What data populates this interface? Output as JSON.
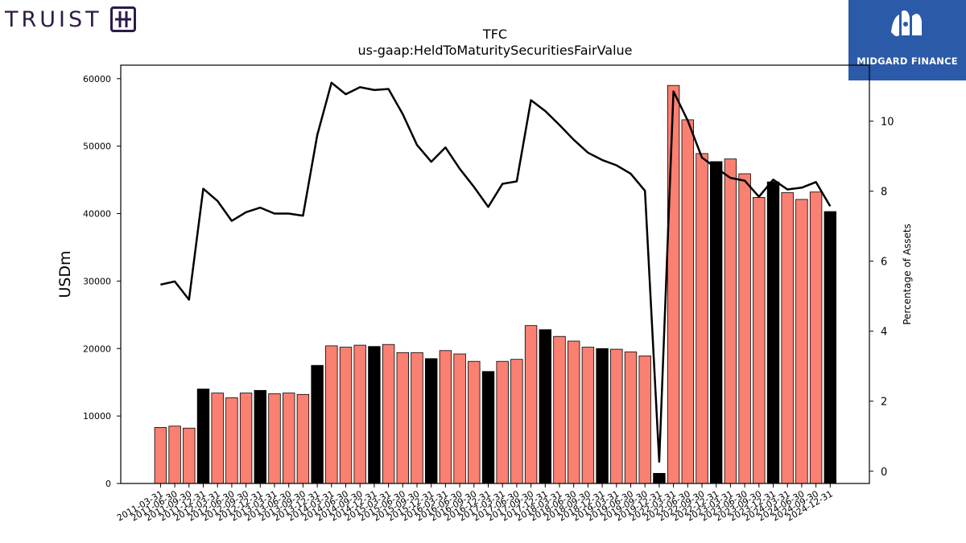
{
  "logos": {
    "left_brand": "TRUIST",
    "right_brand": "MIDGARD FINANCE",
    "right_bg": "#2b5aa8",
    "left_color": "#2e1a47"
  },
  "chart_data": {
    "type": "bar",
    "title": "TFC",
    "subtitle": "us-gaap:HeldToMaturitySecuritiesFairValue",
    "ylabel": "USDm",
    "y2label": "Percentage of Assets",
    "ylim": [
      0,
      62000
    ],
    "y2lim": [
      -0.35,
      11.6
    ],
    "yticks": [
      0,
      10000,
      20000,
      30000,
      40000,
      50000,
      60000
    ],
    "y2ticks": [
      0,
      2,
      4,
      6,
      8,
      10
    ],
    "colors": {
      "bar": "#fa8072",
      "bar_q4": "#000000",
      "line": "#000000"
    },
    "categories": [
      "2011-03-31",
      "2011-06-30",
      "2011-09-30",
      "2011-12-31",
      "2012-03-31",
      "2012-06-30",
      "2012-09-30",
      "2012-12-31",
      "2013-03-31",
      "2013-06-30",
      "2013-09-30",
      "2013-12-31",
      "2014-03-31",
      "2014-06-30",
      "2014-09-30",
      "2014-12-31",
      "2015-03-31",
      "2015-06-30",
      "2015-09-30",
      "2015-12-31",
      "2016-03-31",
      "2016-06-30",
      "2016-09-30",
      "2016-12-31",
      "2017-03-31",
      "2017-06-30",
      "2017-09-30",
      "2017-12-31",
      "2018-03-31",
      "2018-06-30",
      "2018-09-30",
      "2018-12-31",
      "2019-03-31",
      "2019-06-30",
      "2019-09-30",
      "2019-12-31",
      "2022-03-31",
      "2022-06-30",
      "2022-09-30",
      "2022-12-31",
      "2023-03-31",
      "2023-06-30",
      "2023-09-30",
      "2023-12-31",
      "2024-03-31",
      "2024-06-30",
      "2024-09-30",
      "2024-12-31"
    ],
    "series": [
      {
        "kind": "bar",
        "axis": "left",
        "values": [
          8300,
          8500,
          8200,
          14000,
          13400,
          12700,
          13400,
          13800,
          13300,
          13400,
          13200,
          17500,
          20400,
          20200,
          20500,
          20300,
          20600,
          19400,
          19400,
          18500,
          19700,
          19200,
          18100,
          16600,
          18100,
          18400,
          23400,
          22800,
          21800,
          21100,
          20200,
          20000,
          19900,
          19500,
          18900,
          1500,
          59000,
          53900,
          48900,
          47700,
          48100,
          45900,
          42400,
          44700,
          43100,
          42100,
          43200,
          40300
        ]
      },
      {
        "kind": "line",
        "axis": "right",
        "values": [
          5.33,
          5.42,
          4.9,
          8.07,
          7.72,
          7.15,
          7.4,
          7.53,
          7.36,
          7.36,
          7.3,
          9.6,
          11.1,
          10.77,
          10.97,
          10.89,
          10.92,
          10.2,
          9.32,
          8.84,
          9.25,
          8.64,
          8.12,
          7.55,
          8.21,
          8.28,
          10.6,
          10.29,
          9.89,
          9.47,
          9.1,
          8.89,
          8.74,
          8.5,
          8.01,
          0.27,
          10.85,
          10.02,
          8.96,
          8.66,
          8.38,
          8.3,
          7.84,
          8.33,
          8.05,
          8.1,
          8.26,
          7.57
        ]
      }
    ]
  }
}
